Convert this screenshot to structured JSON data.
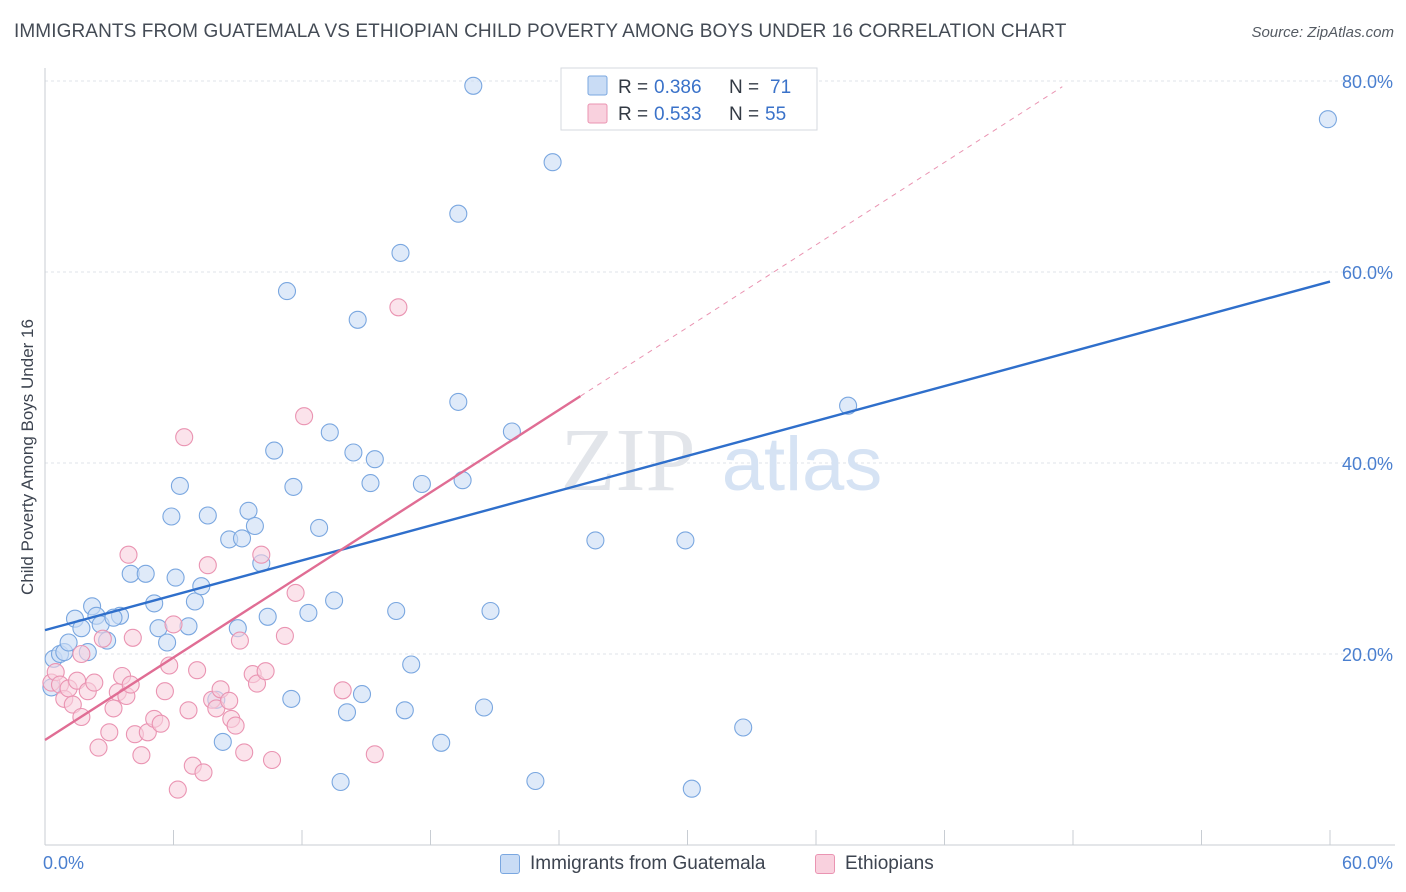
{
  "title": "IMMIGRANTS FROM GUATEMALA VS ETHIOPIAN CHILD POVERTY AMONG BOYS UNDER 16 CORRELATION CHART",
  "source": "Source: ZipAtlas.com",
  "watermark": {
    "zip": "ZIP",
    "atlas": "atlas"
  },
  "colors": {
    "blue_fill": "#c9dcf5",
    "blue_stroke": "#7aa7e0",
    "blue_line": "#2f6fcb",
    "pink_fill": "#f9d1de",
    "pink_stroke": "#ea94b2",
    "pink_line": "#e06d94",
    "grid": "#dfe3e8",
    "tick_text": "#4a7fcf"
  },
  "stats_legend": [
    {
      "r_label": "R =",
      "r_value": "0.386",
      "n_label": "N =",
      "n_value": "71"
    },
    {
      "r_label": "R =",
      "r_value": "0.533",
      "n_label": "N =",
      "n_value": "55"
    }
  ],
  "bottom_legend": [
    "Immigrants from Guatemala",
    "Ethiopians"
  ],
  "chart_data": {
    "type": "scatter",
    "title": "IMMIGRANTS FROM GUATEMALA VS ETHIOPIAN CHILD POVERTY AMONG BOYS UNDER 16 CORRELATION CHART",
    "xlabel": "",
    "ylabel": "Child Poverty Among Boys Under 16",
    "xlim": [
      0,
      60
    ],
    "ylim": [
      0,
      80
    ],
    "x_tick_labels": [
      {
        "value": 0,
        "label": "0.0%"
      },
      {
        "value": 60,
        "label": "60.0%"
      }
    ],
    "y_tick_labels": [
      {
        "value": 20,
        "label": "20.0%"
      },
      {
        "value": 40,
        "label": "40.0%"
      },
      {
        "value": 60,
        "label": "60.0%"
      },
      {
        "value": 80,
        "label": "80.0%"
      }
    ],
    "grid": true,
    "legend_position": "top-center",
    "series": [
      {
        "name": "Immigrants from Guatemala",
        "color": "#7aa7e0",
        "r": 0.386,
        "n": 71,
        "trend": {
          "x": [
            0,
            60
          ],
          "y": [
            22.5,
            59.0
          ]
        },
        "points": [
          [
            0.3,
            16.5
          ],
          [
            0.4,
            19.5
          ],
          [
            0.7,
            20.0
          ],
          [
            0.9,
            20.2
          ],
          [
            1.1,
            21.2
          ],
          [
            1.4,
            23.7
          ],
          [
            1.7,
            22.7
          ],
          [
            2.2,
            25.0
          ],
          [
            2.4,
            24.0
          ],
          [
            2.6,
            23.1
          ],
          [
            3.5,
            24.0
          ],
          [
            3.2,
            23.8
          ],
          [
            2.0,
            20.2
          ],
          [
            2.9,
            21.4
          ],
          [
            4.0,
            28.4
          ],
          [
            4.7,
            28.4
          ],
          [
            5.1,
            25.3
          ],
          [
            5.3,
            22.7
          ],
          [
            5.7,
            21.2
          ],
          [
            5.9,
            34.4
          ],
          [
            6.1,
            28.0
          ],
          [
            6.3,
            37.6
          ],
          [
            6.7,
            22.9
          ],
          [
            7.0,
            25.5
          ],
          [
            7.3,
            27.1
          ],
          [
            7.6,
            34.5
          ],
          [
            8.0,
            15.2
          ],
          [
            8.3,
            10.8
          ],
          [
            8.6,
            32.0
          ],
          [
            9.0,
            22.7
          ],
          [
            9.2,
            32.1
          ],
          [
            9.5,
            35.0
          ],
          [
            9.8,
            33.4
          ],
          [
            10.1,
            29.5
          ],
          [
            10.4,
            23.9
          ],
          [
            10.7,
            41.3
          ],
          [
            11.3,
            58.0
          ],
          [
            11.5,
            15.3
          ],
          [
            11.6,
            37.5
          ],
          [
            12.3,
            24.3
          ],
          [
            12.8,
            33.2
          ],
          [
            13.3,
            43.2
          ],
          [
            13.5,
            25.6
          ],
          [
            13.8,
            6.6
          ],
          [
            14.1,
            13.9
          ],
          [
            14.4,
            41.1
          ],
          [
            14.6,
            55.0
          ],
          [
            14.8,
            15.8
          ],
          [
            15.2,
            37.9
          ],
          [
            15.4,
            40.4
          ],
          [
            16.4,
            24.5
          ],
          [
            16.6,
            62.0
          ],
          [
            16.8,
            14.1
          ],
          [
            17.1,
            18.9
          ],
          [
            17.6,
            37.8
          ],
          [
            18.5,
            10.7
          ],
          [
            19.3,
            66.1
          ],
          [
            19.3,
            46.4
          ],
          [
            19.5,
            38.2
          ],
          [
            20.0,
            79.5
          ],
          [
            20.5,
            14.4
          ],
          [
            20.8,
            24.5
          ],
          [
            21.8,
            43.3
          ],
          [
            22.9,
            6.7
          ],
          [
            23.7,
            71.5
          ],
          [
            25.7,
            31.9
          ],
          [
            29.9,
            31.9
          ],
          [
            30.2,
            5.9
          ],
          [
            32.6,
            12.3
          ],
          [
            37.5,
            46.0
          ],
          [
            59.9,
            76.0
          ]
        ]
      },
      {
        "name": "Ethiopians",
        "color": "#ea94b2",
        "r": 0.533,
        "n": 55,
        "trend": {
          "x": [
            0,
            25
          ],
          "y": [
            11.0,
            47.0
          ]
        },
        "trend_extension": {
          "x": [
            25,
            47.5
          ],
          "y": [
            47.0,
            79.4
          ]
        },
        "points": [
          [
            0.3,
            17.0
          ],
          [
            0.5,
            18.1
          ],
          [
            0.7,
            16.8
          ],
          [
            0.9,
            15.3
          ],
          [
            1.1,
            16.4
          ],
          [
            1.3,
            14.7
          ],
          [
            1.5,
            17.2
          ],
          [
            1.7,
            20.0
          ],
          [
            1.7,
            13.4
          ],
          [
            2.0,
            16.1
          ],
          [
            2.3,
            17.0
          ],
          [
            2.5,
            10.2
          ],
          [
            2.7,
            21.6
          ],
          [
            3.0,
            11.8
          ],
          [
            3.2,
            14.3
          ],
          [
            3.4,
            16.0
          ],
          [
            3.6,
            17.7
          ],
          [
            3.8,
            15.6
          ],
          [
            3.9,
            30.4
          ],
          [
            4.0,
            16.8
          ],
          [
            4.1,
            21.7
          ],
          [
            4.2,
            11.6
          ],
          [
            4.5,
            9.4
          ],
          [
            4.8,
            11.8
          ],
          [
            5.1,
            13.2
          ],
          [
            5.4,
            12.7
          ],
          [
            5.6,
            16.1
          ],
          [
            5.8,
            18.8
          ],
          [
            6.0,
            23.1
          ],
          [
            6.2,
            5.8
          ],
          [
            6.5,
            42.7
          ],
          [
            6.7,
            14.1
          ],
          [
            6.9,
            8.3
          ],
          [
            7.1,
            18.3
          ],
          [
            7.4,
            7.6
          ],
          [
            7.6,
            29.3
          ],
          [
            7.8,
            15.2
          ],
          [
            8.0,
            14.3
          ],
          [
            8.2,
            16.3
          ],
          [
            8.6,
            15.1
          ],
          [
            8.7,
            13.2
          ],
          [
            8.9,
            12.5
          ],
          [
            9.1,
            21.4
          ],
          [
            9.3,
            9.7
          ],
          [
            9.7,
            17.9
          ],
          [
            9.9,
            16.9
          ],
          [
            10.1,
            30.4
          ],
          [
            10.3,
            18.2
          ],
          [
            10.6,
            8.9
          ],
          [
            11.2,
            21.9
          ],
          [
            11.7,
            26.4
          ],
          [
            12.1,
            44.9
          ],
          [
            13.9,
            16.2
          ],
          [
            15.4,
            9.5
          ],
          [
            16.5,
            56.3
          ]
        ]
      }
    ]
  }
}
